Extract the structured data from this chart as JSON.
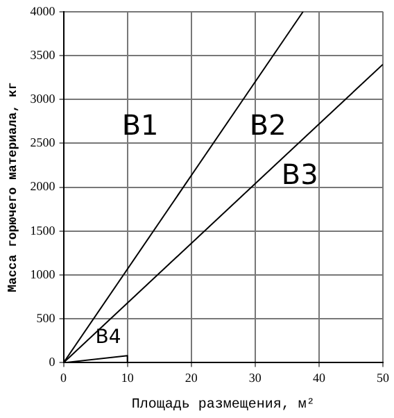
{
  "chart_data": {
    "type": "line",
    "xlabel": "Площадь размещения, м²",
    "ylabel": "Масса горючего материала, кг",
    "series": [
      {
        "color": "#000000",
        "x": [
          0,
          37.5
        ],
        "values": [
          0,
          4000
        ]
      },
      {
        "color": "#000000",
        "x": [
          0,
          50
        ],
        "values": [
          0,
          3400
        ]
      },
      {
        "color": "#000000",
        "x": [
          0,
          10,
          10
        ],
        "values": [
          0,
          80,
          0
        ]
      }
    ],
    "xlim": [
      0,
      50
    ],
    "xticks": [
      0,
      10,
      20,
      30,
      40,
      50
    ],
    "ylim": [
      0,
      4000
    ],
    "yticks": [
      0,
      500,
      1000,
      1500,
      2000,
      2500,
      3000,
      3500,
      4000
    ],
    "grid": true,
    "line_style": "solid",
    "marker": "none",
    "legend": false,
    "annotations": [
      "B1",
      "B2",
      "B3",
      "B4"
    ]
  }
}
